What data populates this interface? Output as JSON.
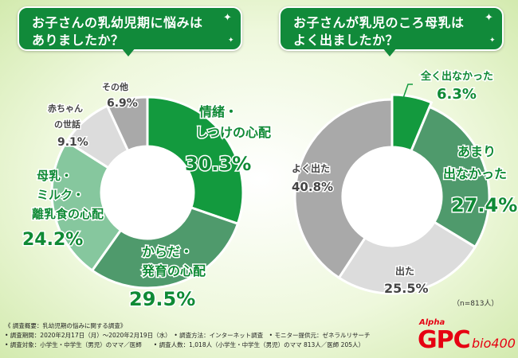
{
  "colors": {
    "green_dark": "#139a3e",
    "green_mid": "#4f9a6c",
    "green_light": "#86c79e",
    "gray_light": "#dcdcdc",
    "gray_mid": "#a9a9a9",
    "question_bg": "#118a3a",
    "label_green": "#0f8a35",
    "text_gray": "#444444",
    "brand_red": "#e60012"
  },
  "questions": {
    "q1": "お子さんの乳幼児期に悩みは\nありましたか？",
    "q2": "お子さんが乳児のころ母乳は\nよく出ましたか？"
  },
  "chart_data": [
    {
      "type": "pie",
      "title": "お子さんの乳幼児期に悩みはありましたか？",
      "slices": [
        {
          "label": "情緒・しつけの心配",
          "value": 30.3,
          "value_text": "30.3%",
          "color": "#139a3e"
        },
        {
          "label": "からだ・発育の心配",
          "value": 29.5,
          "value_text": "29.5%",
          "color": "#4f9a6c"
        },
        {
          "label": "母乳・ミルク・離乳食の心配",
          "value": 24.2,
          "value_text": "24.2%",
          "color": "#86c79e"
        },
        {
          "label": "赤ちゃんの世話",
          "value": 9.1,
          "value_text": "9.1%",
          "color": "#dcdcdc"
        },
        {
          "label": "その他",
          "value": 6.9,
          "value_text": "6.9%",
          "color": "#a9a9a9"
        }
      ]
    },
    {
      "type": "pie",
      "title": "お子さんが乳児のころ母乳はよく出ましたか？",
      "slices": [
        {
          "label": "全く出なかった",
          "value": 6.3,
          "value_text": "6.3%",
          "color": "#139a3e"
        },
        {
          "label": "あまり出なかった",
          "value": 27.4,
          "value_text": "27.4%",
          "color": "#4f9a6c"
        },
        {
          "label": "出た",
          "value": 25.5,
          "value_text": "25.5%",
          "color": "#dcdcdc"
        },
        {
          "label": "よく出た",
          "value": 40.8,
          "value_text": "40.8%",
          "color": "#a9a9a9"
        }
      ],
      "note": "（n=813人）"
    }
  ],
  "footer": {
    "line1": "《 調査概要：乳幼児期の悩みに関する調査》",
    "line2": "• 調査期間：2020年2月17日（月）～2020年2月19日（水）　• 調査方法：インターネット調査　• モニター提供元：ゼネラルリサーチ",
    "line3": "• 調査対象：小学生・中学生（男児）のママ／医師　　• 調査人数：1,018人（小学生・中学生（男児）のママ 813人／医師 205人）"
  },
  "brand": {
    "alpha": "Alpha",
    "gpc": "GPC",
    "bio": "bio400"
  }
}
